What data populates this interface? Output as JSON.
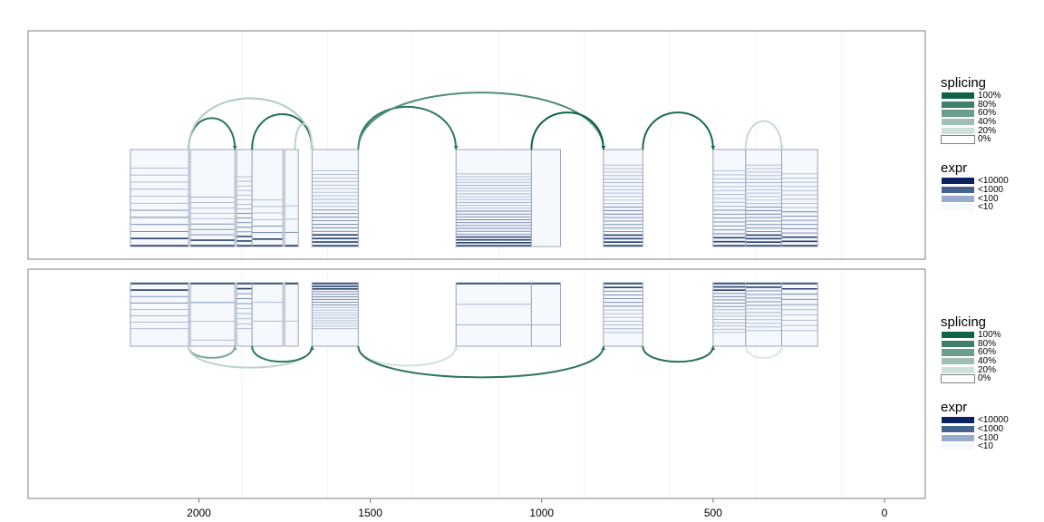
{
  "chart_data": {
    "type": "diagram",
    "x_axis": {
      "reversed": true,
      "ticks": [
        2000,
        1500,
        1000,
        500,
        0
      ],
      "tick_labels": [
        "2000",
        "1500",
        "1000",
        "500",
        "0"
      ],
      "range": [
        2480,
        -120
      ]
    },
    "panels": [
      {
        "exons": [
          {
            "start": 2200,
            "end": 2030,
            "rows": 12,
            "dense": 0.75
          },
          {
            "start": 2025,
            "end": 1895,
            "rows": 10,
            "dense": 0.25
          },
          {
            "start": 1890,
            "end": 1845,
            "rows": 16,
            "dense": 0.6
          },
          {
            "start": 1845,
            "end": 1755,
            "rows": 8,
            "dense": 0.2
          },
          {
            "start": 1750,
            "end": 1710,
            "rows": 4,
            "dense": 0.1
          },
          {
            "start": 1670,
            "end": 1535,
            "rows": 22,
            "dense": 0.7
          },
          {
            "start": 1250,
            "end": 1030,
            "rows": 26,
            "dense": 0.65
          },
          {
            "start": 1030,
            "end": 945,
            "rows": 0,
            "dense": 0.0
          },
          {
            "start": 820,
            "end": 705,
            "rows": 24,
            "dense": 0.8
          },
          {
            "start": 500,
            "end": 405,
            "rows": 20,
            "dense": 0.7
          },
          {
            "start": 405,
            "end": 300,
            "rows": 24,
            "dense": 0.8
          },
          {
            "start": 300,
            "end": 195,
            "rows": 18,
            "dense": 0.65
          }
        ],
        "junctions": [
          {
            "from": 2030,
            "to": 1895,
            "height": 0.55,
            "psi": 0.85
          },
          {
            "from": 2030,
            "to": 1670,
            "height": 0.9,
            "psi": 0.25
          },
          {
            "from": 1845,
            "to": 1670,
            "height": 0.62,
            "psi": 0.9
          },
          {
            "from": 1720,
            "to": 1670,
            "height": 0.45,
            "psi": 0.2
          },
          {
            "from": 1535,
            "to": 1250,
            "height": 0.75,
            "psi": 0.85
          },
          {
            "from": 1535,
            "to": 820,
            "height": 1.0,
            "psi": 0.7
          },
          {
            "from": 1030,
            "to": 820,
            "height": 0.65,
            "psi": 1.0
          },
          {
            "from": 705,
            "to": 500,
            "height": 0.65,
            "psi": 0.95
          },
          {
            "from": 405,
            "to": 300,
            "height": 0.5,
            "psi": 0.15
          }
        ]
      },
      {
        "exons": [
          {
            "start": 2200,
            "end": 2030,
            "rows": 8,
            "dense": 0.6
          },
          {
            "start": 2025,
            "end": 1895,
            "rows": 4,
            "dense": 0.9
          },
          {
            "start": 1890,
            "end": 1845,
            "rows": 10,
            "dense": 0.6
          },
          {
            "start": 1845,
            "end": 1755,
            "rows": 3,
            "dense": 0.4
          },
          {
            "start": 1750,
            "end": 1710,
            "rows": 2,
            "dense": 0.4
          },
          {
            "start": 1670,
            "end": 1535,
            "rows": 18,
            "dense": 0.6
          },
          {
            "start": 1250,
            "end": 1030,
            "rows": 3,
            "dense": 0.5
          },
          {
            "start": 1030,
            "end": 945,
            "rows": 2,
            "dense": 0.5
          },
          {
            "start": 820,
            "end": 705,
            "rows": 14,
            "dense": 0.7
          },
          {
            "start": 500,
            "end": 405,
            "rows": 16,
            "dense": 0.7
          },
          {
            "start": 405,
            "end": 300,
            "rows": 14,
            "dense": 0.65
          },
          {
            "start": 300,
            "end": 195,
            "rows": 10,
            "dense": 0.65
          }
        ],
        "junctions": [
          {
            "from": 2030,
            "to": 1895,
            "height": 0.3,
            "psi": 0.5
          },
          {
            "from": 2030,
            "to": 1670,
            "height": 0.55,
            "psi": 0.2
          },
          {
            "from": 1845,
            "to": 1670,
            "height": 0.4,
            "psi": 0.85
          },
          {
            "from": 1535,
            "to": 1250,
            "height": 0.5,
            "psi": 0.1
          },
          {
            "from": 1535,
            "to": 820,
            "height": 0.8,
            "psi": 0.85
          },
          {
            "from": 705,
            "to": 500,
            "height": 0.4,
            "psi": 0.9
          },
          {
            "from": 405,
            "to": 300,
            "height": 0.3,
            "psi": 0.05
          }
        ]
      }
    ],
    "legends": [
      {
        "splicing": {
          "title": "splicing",
          "labels": [
            "100%",
            "80%",
            "60%",
            "40%",
            "20%",
            "0%"
          ],
          "colors": [
            "#0e6248",
            "#3f8069",
            "#6b9d8b",
            "#9fbfb3",
            "#cfe0da",
            "#ffffff"
          ]
        },
        "expr": {
          "title": "expr",
          "labels": [
            "<10000",
            "<1000",
            "<100",
            "<10"
          ],
          "colors": [
            "#0c2360",
            "#46628f",
            "#9aaccb",
            "#f5f8fd"
          ]
        }
      },
      {
        "splicing": {
          "title": "splicing",
          "labels": [
            "100%",
            "80%",
            "60%",
            "40%",
            "20%",
            "0%"
          ],
          "colors": [
            "#0e6248",
            "#3f8069",
            "#6b9d8b",
            "#9fbfb3",
            "#cfe0da",
            "#ffffff"
          ]
        },
        "expr": {
          "title": "expr",
          "labels": [
            "<10000",
            "<1000",
            "<100",
            "<10"
          ],
          "colors": [
            "#0c2360",
            "#46628f",
            "#9aaccb",
            "#f5f8fd"
          ]
        }
      }
    ]
  }
}
